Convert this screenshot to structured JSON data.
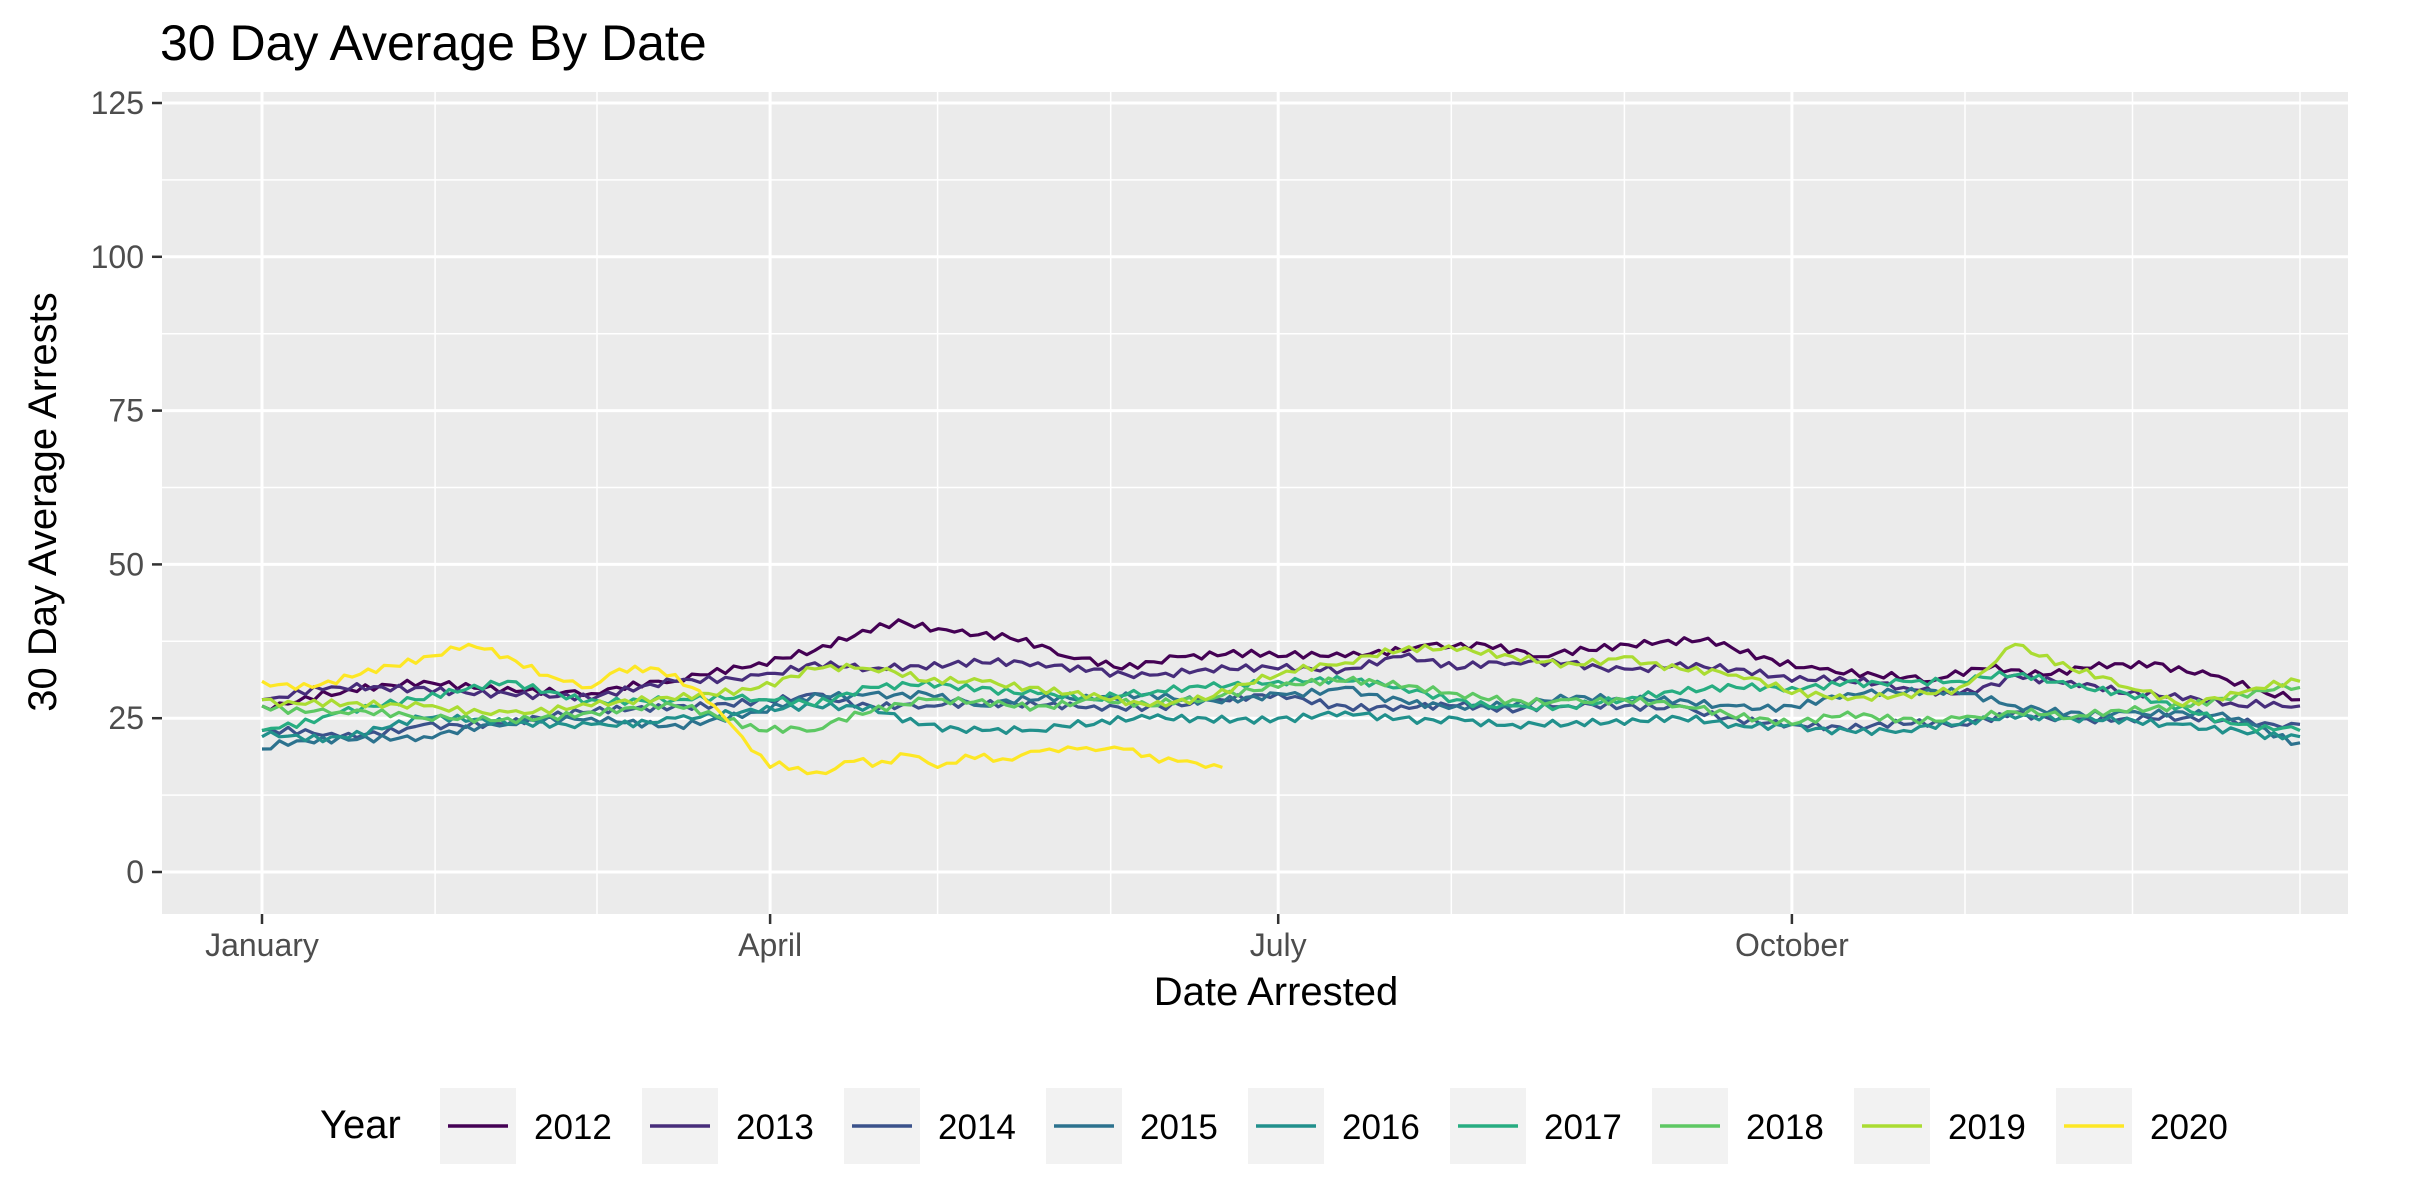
{
  "chart_data": {
    "type": "line",
    "title": "30 Day Average By Date",
    "xlabel": "Date Arrested",
    "ylabel": "30 Day Average Arrests",
    "x_axis": "day of year",
    "xlim": [
      1,
      366
    ],
    "ylim": [
      0,
      125
    ],
    "y_ticks": [
      0,
      25,
      50,
      75,
      100,
      125
    ],
    "x_ticks": [
      {
        "label": "January",
        "day": 1
      },
      {
        "label": "April",
        "day": 92
      },
      {
        "label": "July",
        "day": 183
      },
      {
        "label": "October",
        "day": 275
      }
    ],
    "x_minor_days": [
      32,
      61,
      122,
      153,
      214,
      245,
      306,
      336,
      366
    ],
    "grid": true,
    "legend": {
      "title": "Year",
      "position": "bottom"
    },
    "series": [
      {
        "name": "2012",
        "color": "#440154",
        "points": [
          [
            1,
            27
          ],
          [
            15,
            29
          ],
          [
            30,
            31
          ],
          [
            45,
            30
          ],
          [
            60,
            29
          ],
          [
            75,
            31
          ],
          [
            90,
            34
          ],
          [
            100,
            36
          ],
          [
            110,
            39
          ],
          [
            115,
            41
          ],
          [
            125,
            39
          ],
          [
            135,
            38
          ],
          [
            145,
            35
          ],
          [
            155,
            33
          ],
          [
            165,
            35
          ],
          [
            175,
            36
          ],
          [
            183,
            35
          ],
          [
            195,
            35
          ],
          [
            210,
            37
          ],
          [
            220,
            37
          ],
          [
            230,
            35
          ],
          [
            240,
            36
          ],
          [
            250,
            37
          ],
          [
            260,
            38
          ],
          [
            270,
            35
          ],
          [
            280,
            33
          ],
          [
            290,
            32
          ],
          [
            300,
            31
          ],
          [
            310,
            33
          ],
          [
            320,
            32
          ],
          [
            330,
            34
          ],
          [
            340,
            34
          ],
          [
            350,
            32
          ],
          [
            360,
            29
          ],
          [
            366,
            28
          ]
        ]
      },
      {
        "name": "2013",
        "color": "#472D7B",
        "points": [
          [
            1,
            28
          ],
          [
            15,
            30
          ],
          [
            30,
            30
          ],
          [
            45,
            29
          ],
          [
            60,
            28
          ],
          [
            75,
            31
          ],
          [
            90,
            32
          ],
          [
            100,
            34
          ],
          [
            110,
            33
          ],
          [
            120,
            33
          ],
          [
            130,
            34
          ],
          [
            140,
            34
          ],
          [
            150,
            33
          ],
          [
            160,
            32
          ],
          [
            170,
            33
          ],
          [
            183,
            33
          ],
          [
            195,
            33
          ],
          [
            205,
            35
          ],
          [
            215,
            33
          ],
          [
            225,
            34
          ],
          [
            235,
            34
          ],
          [
            245,
            33
          ],
          [
            255,
            34
          ],
          [
            265,
            33
          ],
          [
            275,
            31
          ],
          [
            285,
            31
          ],
          [
            295,
            30
          ],
          [
            305,
            29
          ],
          [
            315,
            32
          ],
          [
            325,
            31
          ],
          [
            335,
            29
          ],
          [
            345,
            28
          ],
          [
            355,
            27
          ],
          [
            366,
            27
          ]
        ]
      },
      {
        "name": "2014",
        "color": "#3B528B",
        "points": [
          [
            1,
            23
          ],
          [
            15,
            22
          ],
          [
            30,
            24
          ],
          [
            45,
            24
          ],
          [
            60,
            26
          ],
          [
            75,
            27
          ],
          [
            90,
            28
          ],
          [
            100,
            29
          ],
          [
            110,
            27
          ],
          [
            120,
            27
          ],
          [
            130,
            27
          ],
          [
            140,
            27
          ],
          [
            150,
            27
          ],
          [
            160,
            27
          ],
          [
            170,
            28
          ],
          [
            183,
            29
          ],
          [
            195,
            27
          ],
          [
            205,
            27
          ],
          [
            215,
            27
          ],
          [
            225,
            26
          ],
          [
            235,
            27
          ],
          [
            245,
            27
          ],
          [
            255,
            27
          ],
          [
            265,
            25
          ],
          [
            275,
            24
          ],
          [
            285,
            23
          ],
          [
            295,
            24
          ],
          [
            305,
            24
          ],
          [
            315,
            26
          ],
          [
            325,
            25
          ],
          [
            335,
            25
          ],
          [
            345,
            25
          ],
          [
            355,
            24
          ],
          [
            366,
            24
          ]
        ]
      },
      {
        "name": "2015",
        "color": "#2C728E",
        "points": [
          [
            1,
            20
          ],
          [
            15,
            22
          ],
          [
            30,
            22
          ],
          [
            45,
            24
          ],
          [
            60,
            25
          ],
          [
            75,
            24
          ],
          [
            90,
            26
          ],
          [
            100,
            29
          ],
          [
            110,
            29
          ],
          [
            120,
            29
          ],
          [
            130,
            27
          ],
          [
            140,
            28
          ],
          [
            150,
            28
          ],
          [
            160,
            29
          ],
          [
            170,
            28
          ],
          [
            183,
            29
          ],
          [
            195,
            30
          ],
          [
            205,
            28
          ],
          [
            215,
            27
          ],
          [
            225,
            27
          ],
          [
            235,
            28
          ],
          [
            245,
            28
          ],
          [
            255,
            28
          ],
          [
            265,
            27
          ],
          [
            275,
            27
          ],
          [
            285,
            29
          ],
          [
            295,
            29
          ],
          [
            305,
            29
          ],
          [
            315,
            27
          ],
          [
            325,
            26
          ],
          [
            335,
            26
          ],
          [
            345,
            26
          ],
          [
            355,
            25
          ],
          [
            366,
            21
          ]
        ]
      },
      {
        "name": "2016",
        "color": "#21908C",
        "points": [
          [
            1,
            22
          ],
          [
            15,
            22
          ],
          [
            30,
            25
          ],
          [
            45,
            24
          ],
          [
            60,
            24
          ],
          [
            75,
            25
          ],
          [
            90,
            26
          ],
          [
            100,
            27
          ],
          [
            110,
            27
          ],
          [
            120,
            24
          ],
          [
            130,
            23
          ],
          [
            140,
            23
          ],
          [
            150,
            24
          ],
          [
            160,
            25
          ],
          [
            170,
            25
          ],
          [
            183,
            25
          ],
          [
            195,
            26
          ],
          [
            205,
            25
          ],
          [
            215,
            25
          ],
          [
            225,
            24
          ],
          [
            235,
            24
          ],
          [
            245,
            24
          ],
          [
            255,
            25
          ],
          [
            265,
            24
          ],
          [
            275,
            24
          ],
          [
            285,
            23
          ],
          [
            295,
            23
          ],
          [
            305,
            24
          ],
          [
            315,
            25
          ],
          [
            325,
            25
          ],
          [
            335,
            25
          ],
          [
            345,
            24
          ],
          [
            355,
            23
          ],
          [
            366,
            22
          ]
        ]
      },
      {
        "name": "2017",
        "color": "#27AD81",
        "points": [
          [
            1,
            23
          ],
          [
            15,
            26
          ],
          [
            30,
            28
          ],
          [
            45,
            31
          ],
          [
            60,
            28
          ],
          [
            75,
            28
          ],
          [
            90,
            28
          ],
          [
            100,
            27
          ],
          [
            110,
            30
          ],
          [
            120,
            31
          ],
          [
            130,
            30
          ],
          [
            140,
            29
          ],
          [
            150,
            28
          ],
          [
            160,
            29
          ],
          [
            170,
            30
          ],
          [
            183,
            31
          ],
          [
            195,
            31
          ],
          [
            205,
            30
          ],
          [
            215,
            28
          ],
          [
            225,
            27
          ],
          [
            235,
            27
          ],
          [
            245,
            28
          ],
          [
            255,
            29
          ],
          [
            265,
            30
          ],
          [
            275,
            30
          ],
          [
            285,
            31
          ],
          [
            295,
            31
          ],
          [
            305,
            31
          ],
          [
            315,
            32
          ],
          [
            325,
            30
          ],
          [
            335,
            29
          ],
          [
            345,
            27
          ],
          [
            355,
            24
          ],
          [
            366,
            23
          ]
        ]
      },
      {
        "name": "2018",
        "color": "#5DC863",
        "points": [
          [
            1,
            27
          ],
          [
            15,
            26
          ],
          [
            30,
            25
          ],
          [
            45,
            25
          ],
          [
            60,
            26
          ],
          [
            75,
            27
          ],
          [
            90,
            23
          ],
          [
            100,
            23
          ],
          [
            110,
            26
          ],
          [
            120,
            28
          ],
          [
            130,
            28
          ],
          [
            140,
            27
          ],
          [
            150,
            28
          ],
          [
            160,
            27
          ],
          [
            170,
            28
          ],
          [
            183,
            30
          ],
          [
            195,
            31
          ],
          [
            205,
            30
          ],
          [
            215,
            29
          ],
          [
            225,
            28
          ],
          [
            235,
            28
          ],
          [
            245,
            28
          ],
          [
            255,
            27
          ],
          [
            265,
            25
          ],
          [
            275,
            24
          ],
          [
            285,
            26
          ],
          [
            295,
            25
          ],
          [
            305,
            25
          ],
          [
            315,
            26
          ],
          [
            325,
            25
          ],
          [
            335,
            26
          ],
          [
            345,
            27
          ],
          [
            355,
            29
          ],
          [
            366,
            30
          ]
        ]
      },
      {
        "name": "2019",
        "color": "#AADC32",
        "points": [
          [
            1,
            28
          ],
          [
            15,
            27
          ],
          [
            30,
            27
          ],
          [
            45,
            26
          ],
          [
            60,
            27
          ],
          [
            75,
            28
          ],
          [
            90,
            30
          ],
          [
            100,
            33
          ],
          [
            110,
            33
          ],
          [
            120,
            31
          ],
          [
            130,
            31
          ],
          [
            140,
            30
          ],
          [
            150,
            29
          ],
          [
            160,
            27
          ],
          [
            170,
            28
          ],
          [
            183,
            32
          ],
          [
            195,
            34
          ],
          [
            205,
            36
          ],
          [
            215,
            36
          ],
          [
            225,
            35
          ],
          [
            235,
            34
          ],
          [
            245,
            35
          ],
          [
            255,
            33
          ],
          [
            265,
            32
          ],
          [
            275,
            29
          ],
          [
            285,
            28
          ],
          [
            295,
            29
          ],
          [
            305,
            30
          ],
          [
            310,
            33
          ],
          [
            315,
            37
          ],
          [
            325,
            33
          ],
          [
            335,
            30
          ],
          [
            345,
            27
          ],
          [
            355,
            29
          ],
          [
            366,
            31
          ]
        ]
      },
      {
        "name": "2020",
        "color": "#FDE725",
        "points": [
          [
            1,
            31
          ],
          [
            10,
            30
          ],
          [
            20,
            33
          ],
          [
            30,
            35
          ],
          [
            38,
            37
          ],
          [
            45,
            35
          ],
          [
            55,
            31
          ],
          [
            60,
            30
          ],
          [
            65,
            33
          ],
          [
            72,
            33
          ],
          [
            78,
            30
          ],
          [
            82,
            27
          ],
          [
            87,
            22
          ],
          [
            92,
            17
          ],
          [
            97,
            17
          ],
          [
            102,
            16
          ],
          [
            107,
            18
          ],
          [
            112,
            18
          ],
          [
            117,
            19
          ],
          [
            122,
            17
          ],
          [
            127,
            19
          ],
          [
            132,
            18
          ],
          [
            137,
            19
          ],
          [
            142,
            20
          ],
          [
            147,
            20
          ],
          [
            152,
            20
          ],
          [
            157,
            20
          ],
          [
            160,
            19
          ],
          [
            165,
            18
          ],
          [
            170,
            17
          ],
          [
            173,
            17
          ]
        ]
      }
    ]
  }
}
